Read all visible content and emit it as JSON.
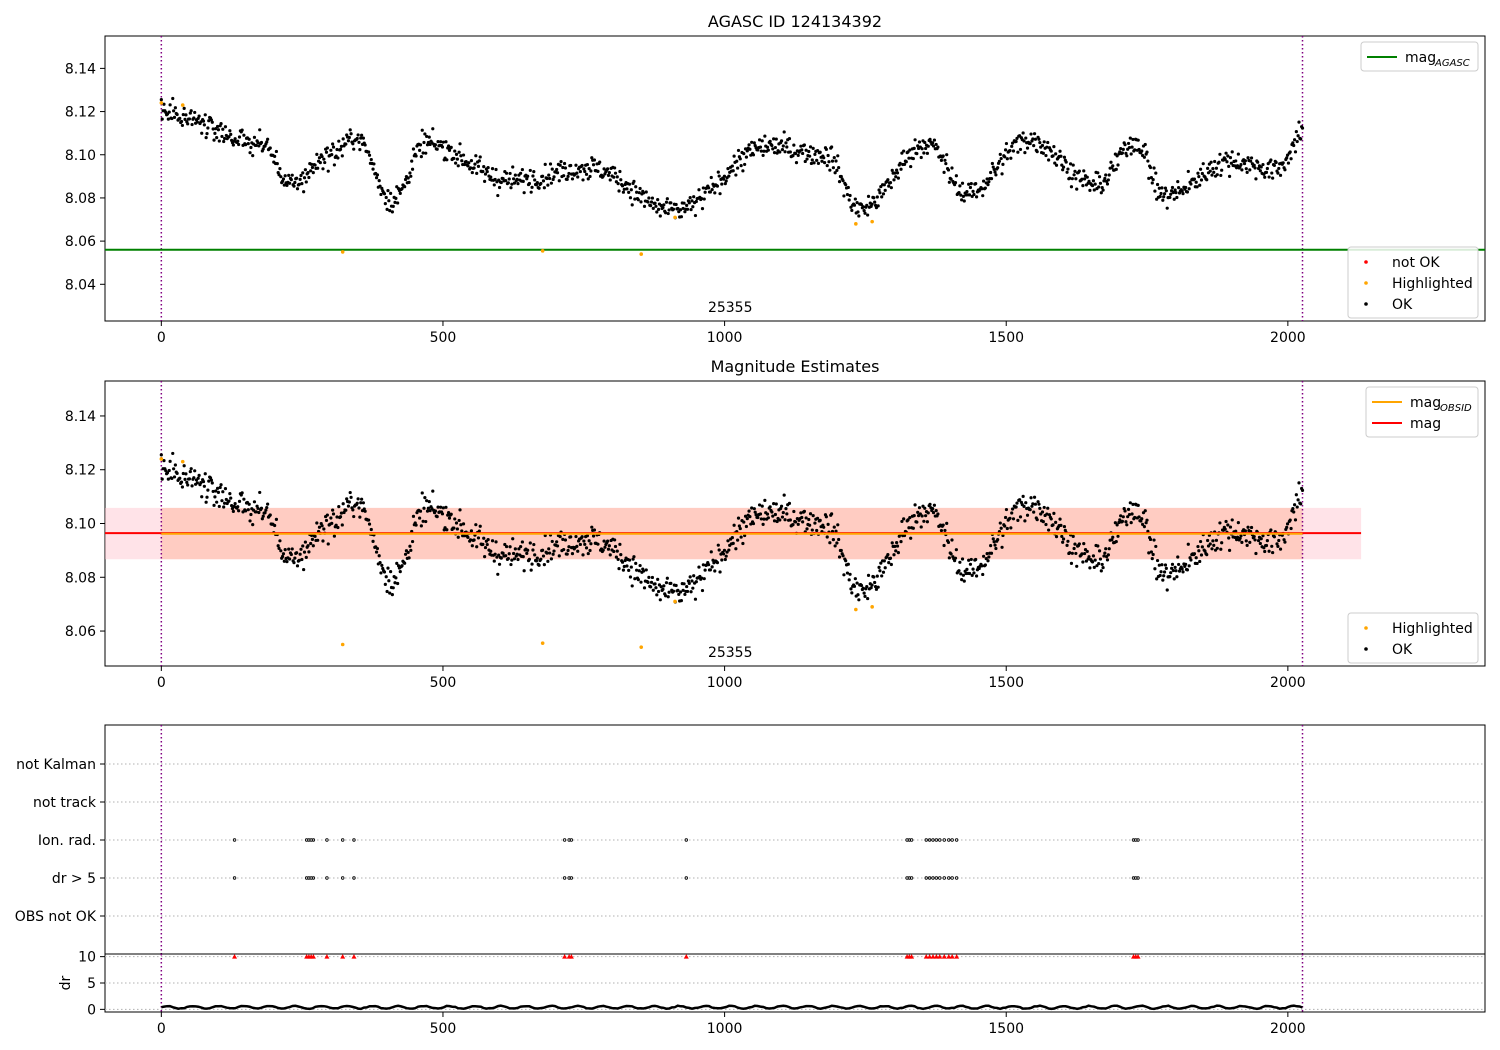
{
  "chart_data": [
    {
      "panel": "agasc",
      "type": "scatter",
      "title": "AGASC ID 124134392",
      "xlim": [
        -100,
        2350
      ],
      "ylim": [
        8.023,
        8.155
      ],
      "x_ticks": [
        "0",
        "500",
        "1000",
        "1500",
        "2000"
      ],
      "y_ticks": [
        "8.04",
        "8.06",
        "8.08",
        "8.10",
        "8.12",
        "8.14"
      ],
      "obsid_label": "25355",
      "obsid_label_x": 1010,
      "obsid_boundaries": [
        0,
        2026
      ],
      "mag_agasc": 8.056,
      "ok_waves": [
        {
          "x0": 0,
          "x1": 180,
          "y0": 8.12,
          "y1": 8.105
        },
        {
          "x0": 180,
          "x1": 230,
          "y0": 8.105,
          "y1": 8.086
        },
        {
          "x0": 230,
          "x1": 300,
          "y0": 8.086,
          "y1": 8.1
        },
        {
          "x0": 300,
          "x1": 345,
          "y0": 8.1,
          "y1": 8.108
        },
        {
          "x0": 345,
          "x1": 410,
          "y0": 8.108,
          "y1": 8.079
        },
        {
          "x0": 410,
          "x1": 470,
          "y0": 8.079,
          "y1": 8.105
        },
        {
          "x0": 470,
          "x1": 620,
          "y0": 8.105,
          "y1": 8.088
        },
        {
          "x0": 620,
          "x1": 760,
          "y0": 8.088,
          "y1": 8.094
        },
        {
          "x0": 760,
          "x1": 910,
          "y0": 8.094,
          "y1": 8.074
        },
        {
          "x0": 910,
          "x1": 1080,
          "y0": 8.074,
          "y1": 8.104
        },
        {
          "x0": 1080,
          "x1": 1180,
          "y0": 8.104,
          "y1": 8.1
        },
        {
          "x0": 1180,
          "x1": 1240,
          "y0": 8.1,
          "y1": 8.075
        },
        {
          "x0": 1240,
          "x1": 1360,
          "y0": 8.075,
          "y1": 8.105
        },
        {
          "x0": 1360,
          "x1": 1430,
          "y0": 8.105,
          "y1": 8.082
        },
        {
          "x0": 1430,
          "x1": 1540,
          "y0": 8.082,
          "y1": 8.107
        },
        {
          "x0": 1540,
          "x1": 1660,
          "y0": 8.107,
          "y1": 8.086
        },
        {
          "x0": 1660,
          "x1": 1730,
          "y0": 8.086,
          "y1": 8.106
        },
        {
          "x0": 1730,
          "x1": 1780,
          "y0": 8.106,
          "y1": 8.081
        },
        {
          "x0": 1780,
          "x1": 1900,
          "y0": 8.081,
          "y1": 8.097
        },
        {
          "x0": 1900,
          "x1": 1980,
          "y0": 8.097,
          "y1": 8.093
        },
        {
          "x0": 1980,
          "x1": 2026,
          "y0": 8.093,
          "y1": 8.109
        }
      ],
      "ok_count": 1300,
      "ok_scatter": 0.0045,
      "highlighted": [
        {
          "x": 0,
          "y": 8.124
        },
        {
          "x": 38,
          "y": 8.123
        },
        {
          "x": 322,
          "y": 8.055
        },
        {
          "x": 677,
          "y": 8.0555
        },
        {
          "x": 852,
          "y": 8.054
        },
        {
          "x": 912,
          "y": 8.071
        },
        {
          "x": 1233,
          "y": 8.068
        },
        {
          "x": 1262,
          "y": 8.069
        }
      ],
      "legend_top": [
        {
          "label": "mag",
          "subscript": "AGASC",
          "color": "#008000",
          "marker": "line"
        }
      ],
      "legend_bottom": [
        {
          "label": "not OK",
          "color": "#ff0000",
          "marker": "dot"
        },
        {
          "label": "Highlighted",
          "color": "#ffa500",
          "marker": "dot"
        },
        {
          "label": "OK",
          "color": "#000000",
          "marker": "dot"
        }
      ]
    },
    {
      "panel": "estimates",
      "type": "scatter",
      "title": "Magnitude Estimates",
      "xlim": [
        -100,
        2350
      ],
      "ylim": [
        8.047,
        8.153
      ],
      "x_ticks": [
        "0",
        "500",
        "1000",
        "1500",
        "2000"
      ],
      "y_ticks": [
        "8.06",
        "8.08",
        "8.10",
        "8.12",
        "8.14"
      ],
      "obsid_label": "25355",
      "obsid_label_x": 1010,
      "mag": 8.0964,
      "mag_obsid": 8.0962,
      "mag_band": [
        8.0867,
        8.1058
      ],
      "mag_band_x": [
        -100,
        2130
      ],
      "legend_top": [
        {
          "label": "mag",
          "subscript": "OBSID",
          "color": "#ffa500",
          "marker": "line"
        },
        {
          "label": "mag",
          "subscript": "",
          "color": "#ff0000",
          "marker": "line"
        }
      ],
      "legend_bottom": [
        {
          "label": "Highlighted",
          "color": "#ffa500",
          "marker": "dot"
        },
        {
          "label": "OK",
          "color": "#000000",
          "marker": "dot"
        }
      ]
    },
    {
      "panel": "flags",
      "type": "scatter",
      "categories": [
        "not Kalman",
        "not track",
        "Ion. rad.",
        "dr > 5",
        "OBS not OK"
      ],
      "xlim": [
        -100,
        2350
      ],
      "flagged_x": [
        130,
        258,
        262,
        266,
        270,
        294,
        322,
        342,
        716,
        724,
        728,
        932,
        1324,
        1328,
        1332,
        1358,
        1364,
        1370,
        1376,
        1382,
        1390,
        1398,
        1404,
        1412,
        1726,
        1730,
        1734
      ],
      "flag_rows": [
        "Ion. rad.",
        "dr > 5"
      ]
    },
    {
      "panel": "dr",
      "type": "line",
      "ylabel": "dr",
      "y_ticks": [
        "0",
        "5",
        "10"
      ],
      "x_ticks": [
        "0",
        "500",
        "1000",
        "1500",
        "2000"
      ],
      "ylim": [
        -0.5,
        10.5
      ],
      "xlim": [
        -100,
        2350
      ],
      "dr_baseline": 0.4,
      "dr_cap": 10,
      "flagged_color": "#ff0000"
    }
  ]
}
